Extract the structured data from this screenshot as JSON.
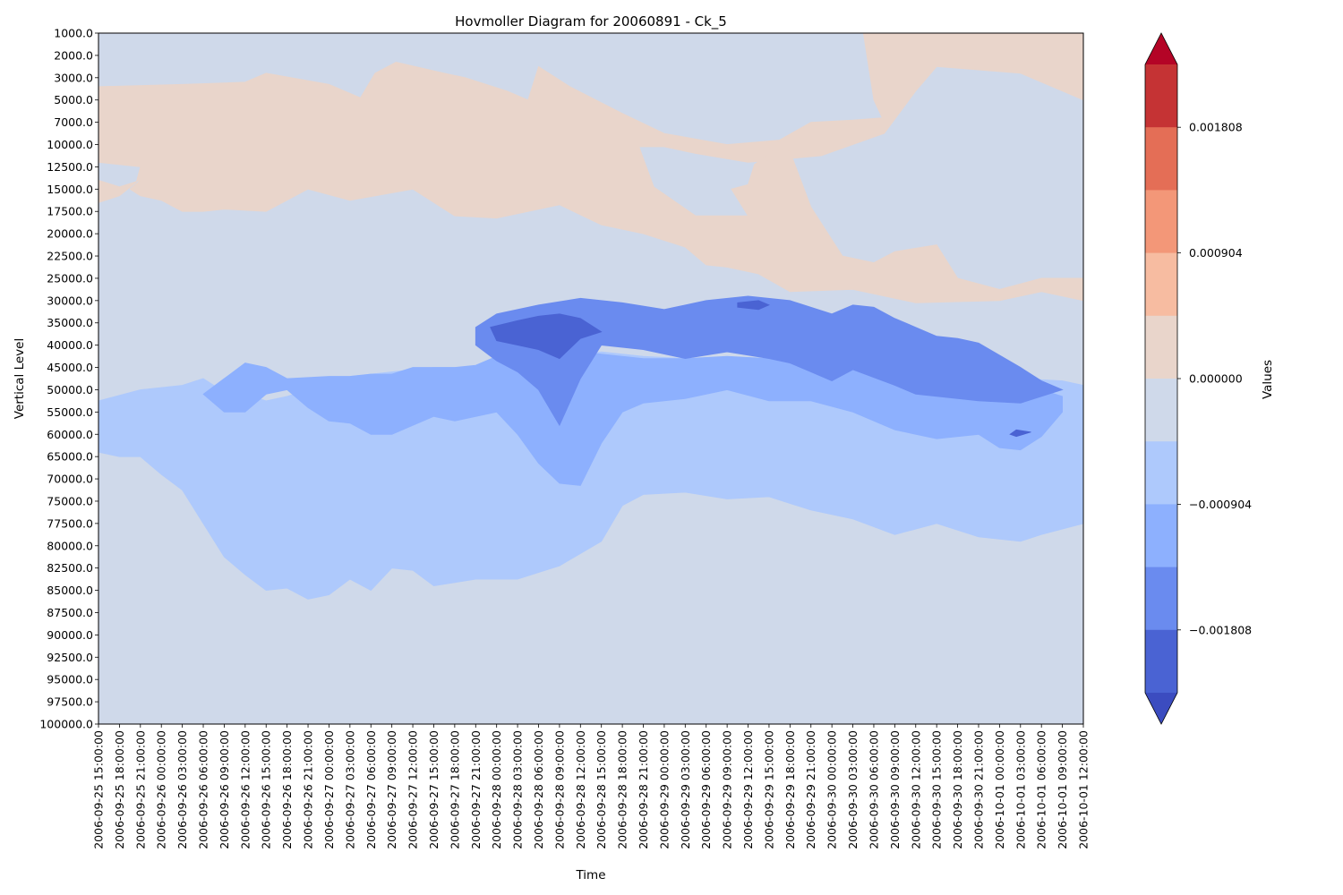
{
  "chart_data": {
    "type": "heatmap",
    "title": "Hovmoller Diagram for 20060891 - Ck_5",
    "xlabel": "Time",
    "ylabel": "Vertical Level",
    "x_categories": [
      "2006-09-25 15:00:00",
      "2006-09-25 18:00:00",
      "2006-09-25 21:00:00",
      "2006-09-26 00:00:00",
      "2006-09-26 03:00:00",
      "2006-09-26 06:00:00",
      "2006-09-26 09:00:00",
      "2006-09-26 12:00:00",
      "2006-09-26 15:00:00",
      "2006-09-26 18:00:00",
      "2006-09-26 21:00:00",
      "2006-09-27 00:00:00",
      "2006-09-27 03:00:00",
      "2006-09-27 06:00:00",
      "2006-09-27 09:00:00",
      "2006-09-27 12:00:00",
      "2006-09-27 15:00:00",
      "2006-09-27 18:00:00",
      "2006-09-27 21:00:00",
      "2006-09-28 00:00:00",
      "2006-09-28 03:00:00",
      "2006-09-28 06:00:00",
      "2006-09-28 09:00:00",
      "2006-09-28 12:00:00",
      "2006-09-28 15:00:00",
      "2006-09-28 18:00:00",
      "2006-09-28 21:00:00",
      "2006-09-29 00:00:00",
      "2006-09-29 03:00:00",
      "2006-09-29 06:00:00",
      "2006-09-29 09:00:00",
      "2006-09-29 12:00:00",
      "2006-09-29 15:00:00",
      "2006-09-29 18:00:00",
      "2006-09-29 21:00:00",
      "2006-09-30 00:00:00",
      "2006-09-30 03:00:00",
      "2006-09-30 06:00:00",
      "2006-09-30 09:00:00",
      "2006-09-30 12:00:00",
      "2006-09-30 15:00:00",
      "2006-09-30 18:00:00",
      "2006-09-30 21:00:00",
      "2006-10-01 00:00:00",
      "2006-10-01 03:00:00",
      "2006-10-01 06:00:00",
      "2006-10-01 09:00:00",
      "2006-10-01 12:00:00"
    ],
    "y_categories": [
      "1000.0",
      "2000.0",
      "3000.0",
      "5000.0",
      "7000.0",
      "10000.0",
      "12500.0",
      "15000.0",
      "17500.0",
      "20000.0",
      "22500.0",
      "25000.0",
      "30000.0",
      "35000.0",
      "40000.0",
      "45000.0",
      "50000.0",
      "55000.0",
      "60000.0",
      "65000.0",
      "70000.0",
      "75000.0",
      "77500.0",
      "80000.0",
      "82500.0",
      "85000.0",
      "87500.0",
      "90000.0",
      "92500.0",
      "95000.0",
      "97500.0",
      "100000.0"
    ],
    "colorbar": {
      "label": "Values",
      "ticks": [
        "0.001808",
        "0.000904",
        "0.000000",
        "−0.000904",
        "−0.001808"
      ],
      "levels_top_to_bottom": [
        "#b40426",
        "#c53334",
        "#e46e56",
        "#f39778",
        "#f7bca1",
        "#e9d5cb",
        "#cfd9ea",
        "#aec9fc",
        "#8db0fe",
        "#6a8bef",
        "#4a63d3",
        "#3b4cc0"
      ],
      "extend": "both"
    },
    "background_color": "#cfd9ea",
    "regions": [
      {
        "level": 0.00045,
        "color": "#e9d5cb",
        "shape": [
          [
            0,
            2.4
          ],
          [
            4,
            2.3
          ],
          [
            7,
            2.2
          ],
          [
            8,
            1.8
          ],
          [
            11,
            2.3
          ],
          [
            12.5,
            2.9
          ],
          [
            13.2,
            1.8
          ],
          [
            14.2,
            1.3
          ],
          [
            16.5,
            1.8
          ],
          [
            17.5,
            2.0
          ],
          [
            19.5,
            2.6
          ],
          [
            20.5,
            3.0
          ],
          [
            21,
            1.5
          ],
          [
            22.5,
            2.4
          ],
          [
            25,
            3.6
          ],
          [
            27,
            4.5
          ],
          [
            30,
            5.0
          ],
          [
            32.5,
            4.8
          ],
          [
            34,
            4.0
          ],
          [
            36,
            3.9
          ],
          [
            37.4,
            3.8
          ],
          [
            37,
            3.0
          ],
          [
            36.5,
            0
          ],
          [
            47,
            0
          ],
          [
            47,
            3.0
          ],
          [
            44,
            1.8
          ],
          [
            40,
            1.5
          ],
          [
            39,
            2.6
          ],
          [
            37.5,
            4.5
          ],
          [
            34.5,
            5.5
          ],
          [
            31,
            5.8
          ],
          [
            28.5,
            5.4
          ],
          [
            27,
            5.1
          ],
          [
            25.8,
            5.1
          ],
          [
            26.5,
            6.9
          ],
          [
            28.5,
            8.2
          ],
          [
            31,
            8.2
          ],
          [
            30.2,
            7.0
          ],
          [
            31,
            6.8
          ],
          [
            31.3,
            5.9
          ],
          [
            32.3,
            5.2
          ],
          [
            33,
            5.3
          ],
          [
            34,
            7.8
          ],
          [
            35.5,
            10.0
          ],
          [
            37,
            10.3
          ],
          [
            38,
            9.8
          ],
          [
            40,
            9.5
          ],
          [
            41,
            11.0
          ],
          [
            43,
            11.5
          ],
          [
            45,
            11.0
          ],
          [
            47,
            11.0
          ],
          [
            47,
            12.0
          ],
          [
            45,
            11.6
          ],
          [
            43,
            12.0
          ],
          [
            39,
            12.1
          ],
          [
            36,
            11.5
          ],
          [
            33,
            11.6
          ],
          [
            31.5,
            10.8
          ],
          [
            30,
            10.5
          ],
          [
            29,
            10.4
          ],
          [
            28,
            9.6
          ],
          [
            26,
            9.0
          ],
          [
            24,
            8.6
          ],
          [
            22,
            7.7
          ],
          [
            19,
            8.3
          ],
          [
            17,
            8.2
          ],
          [
            15,
            7.0
          ],
          [
            12,
            7.5
          ],
          [
            10,
            7.0
          ],
          [
            8,
            8.0
          ],
          [
            6,
            7.9
          ],
          [
            5,
            8.0
          ],
          [
            4,
            8.0
          ],
          [
            3,
            7.5
          ],
          [
            2,
            7.3
          ],
          [
            1.5,
            7.0
          ],
          [
            2,
            6.6
          ],
          [
            1,
            6.9
          ],
          [
            0,
            6.6
          ],
          [
            0,
            7.6
          ],
          [
            1,
            7.3
          ],
          [
            1.8,
            6.7
          ],
          [
            2,
            6.0
          ],
          [
            0,
            5.8
          ]
        ]
      },
      {
        "level": -0.00045,
        "color": "#aec9fc",
        "shape": [
          [
            0,
            16.5
          ],
          [
            2,
            16.0
          ],
          [
            4,
            15.8
          ],
          [
            5,
            15.5
          ],
          [
            6,
            16.1
          ],
          [
            7,
            16.2
          ],
          [
            8,
            16.5
          ],
          [
            9,
            16.3
          ],
          [
            10,
            16.0
          ],
          [
            12,
            15.4
          ],
          [
            14,
            15.2
          ],
          [
            16,
            15.0
          ],
          [
            18,
            15.0
          ],
          [
            20,
            15.0
          ],
          [
            22,
            14.5
          ],
          [
            23,
            14.4
          ],
          [
            24,
            14.3
          ],
          [
            25,
            14.4
          ],
          [
            26,
            14.5
          ],
          [
            28,
            14.6
          ],
          [
            30,
            14.8
          ],
          [
            32,
            15.0
          ],
          [
            34,
            15.2
          ],
          [
            36,
            15.0
          ],
          [
            38,
            15.0
          ],
          [
            40,
            15.4
          ],
          [
            42,
            15.5
          ],
          [
            44,
            15.5
          ],
          [
            46,
            15.6
          ],
          [
            47,
            15.8
          ],
          [
            47,
            22.0
          ],
          [
            45,
            22.5
          ],
          [
            44,
            22.8
          ],
          [
            42,
            22.6
          ],
          [
            40,
            22.0
          ],
          [
            38,
            22.5
          ],
          [
            36,
            21.8
          ],
          [
            34,
            21.4
          ],
          [
            32,
            20.8
          ],
          [
            30,
            20.9
          ],
          [
            28,
            20.6
          ],
          [
            26,
            20.7
          ],
          [
            25,
            21.2
          ],
          [
            24,
            22.8
          ],
          [
            22,
            23.9
          ],
          [
            20,
            24.5
          ],
          [
            18,
            24.5
          ],
          [
            16,
            24.8
          ],
          [
            15,
            24.1
          ],
          [
            14,
            24.0
          ],
          [
            13,
            25.0
          ],
          [
            12,
            24.5
          ],
          [
            11,
            25.2
          ],
          [
            10,
            25.4
          ],
          [
            9,
            24.9
          ],
          [
            8,
            25.0
          ],
          [
            7,
            24.3
          ],
          [
            6,
            23.5
          ],
          [
            5,
            22.0
          ],
          [
            4,
            20.5
          ],
          [
            3,
            19.8
          ],
          [
            2,
            19.0
          ],
          [
            1,
            19.0
          ],
          [
            0,
            18.8
          ]
        ]
      },
      {
        "level": -0.0009,
        "color": "#8db0fe",
        "shape": [
          [
            5,
            16.2
          ],
          [
            6,
            15.5
          ],
          [
            7,
            14.8
          ],
          [
            8,
            15.0
          ],
          [
            9,
            15.5
          ],
          [
            11,
            15.4
          ],
          [
            12,
            15.4
          ],
          [
            13,
            15.3
          ],
          [
            14,
            15.3
          ],
          [
            15,
            15.0
          ],
          [
            16,
            15.0
          ],
          [
            17,
            15.0
          ],
          [
            18,
            14.9
          ],
          [
            19,
            14.5
          ],
          [
            20,
            14.3
          ],
          [
            21,
            14.2
          ],
          [
            22,
            14.2
          ],
          [
            23,
            14.3
          ],
          [
            25,
            14.5
          ],
          [
            26,
            14.6
          ],
          [
            28,
            14.6
          ],
          [
            30,
            14.5
          ],
          [
            32,
            14.6
          ],
          [
            34,
            14.7
          ],
          [
            35,
            14.6
          ],
          [
            36,
            15.0
          ],
          [
            38,
            15.2
          ],
          [
            40,
            15.5
          ],
          [
            42,
            15.7
          ],
          [
            44,
            15.8
          ],
          [
            45,
            16.0
          ],
          [
            46,
            16.3
          ],
          [
            46,
            17.0
          ],
          [
            45,
            18.1
          ],
          [
            44,
            18.7
          ],
          [
            43,
            18.6
          ],
          [
            42,
            18.0
          ],
          [
            40,
            18.2
          ],
          [
            38,
            17.8
          ],
          [
            36,
            17.0
          ],
          [
            34,
            16.5
          ],
          [
            32,
            16.5
          ],
          [
            30,
            16.0
          ],
          [
            28,
            16.4
          ],
          [
            26,
            16.6
          ],
          [
            25,
            17.0
          ],
          [
            24,
            18.4
          ],
          [
            23,
            20.3
          ],
          [
            22,
            20.2
          ],
          [
            21,
            19.3
          ],
          [
            20,
            18.0
          ],
          [
            19,
            17.0
          ],
          [
            18,
            17.2
          ],
          [
            17,
            17.4
          ],
          [
            16,
            17.2
          ],
          [
            15,
            17.6
          ],
          [
            14,
            18.0
          ],
          [
            13,
            18.0
          ],
          [
            12,
            17.5
          ],
          [
            11,
            17.4
          ],
          [
            10,
            16.8
          ],
          [
            9,
            16.0
          ],
          [
            8,
            16.2
          ],
          [
            7,
            17.0
          ],
          [
            6,
            17.0
          ]
        ]
      },
      {
        "level": -0.00135,
        "color": "#6a8bef",
        "shape": [
          [
            18,
            13.2
          ],
          [
            19,
            12.6
          ],
          [
            21,
            12.2
          ],
          [
            23,
            11.9
          ],
          [
            25,
            12.1
          ],
          [
            27,
            12.4
          ],
          [
            29,
            12.0
          ],
          [
            31,
            11.8
          ],
          [
            33,
            12.0
          ],
          [
            35,
            12.6
          ],
          [
            36,
            12.2
          ],
          [
            37,
            12.3
          ],
          [
            38,
            12.8
          ],
          [
            39,
            13.2
          ],
          [
            40,
            13.6
          ],
          [
            41,
            13.7
          ],
          [
            42,
            13.9
          ],
          [
            44,
            15.0
          ],
          [
            45,
            15.6
          ],
          [
            46,
            16.0
          ],
          [
            44,
            16.6
          ],
          [
            42,
            16.5
          ],
          [
            40,
            16.3
          ],
          [
            39,
            16.2
          ],
          [
            38,
            15.8
          ],
          [
            36,
            15.1
          ],
          [
            35,
            15.6
          ],
          [
            34,
            15.2
          ],
          [
            33,
            14.8
          ],
          [
            32,
            14.6
          ],
          [
            30,
            14.3
          ],
          [
            28,
            14.6
          ],
          [
            26,
            14.2
          ],
          [
            24,
            14.0
          ],
          [
            23,
            15.5
          ],
          [
            22,
            17.6
          ],
          [
            21,
            16.0
          ],
          [
            20,
            15.2
          ],
          [
            19,
            14.7
          ],
          [
            18,
            14.0
          ]
        ]
      },
      {
        "level": -0.0018,
        "color": "#4a63d3",
        "shape": [
          [
            18.7,
            13.2
          ],
          [
            20,
            12.9
          ],
          [
            21,
            12.7
          ],
          [
            22,
            12.6
          ],
          [
            23,
            12.8
          ],
          [
            24,
            13.4
          ],
          [
            23,
            13.7
          ],
          [
            22,
            14.6
          ],
          [
            21,
            14.2
          ],
          [
            20,
            14.0
          ],
          [
            19,
            13.8
          ]
        ]
      },
      {
        "level": -0.0018,
        "color": "#4a63d3",
        "shape": [
          [
            30.5,
            12.1
          ],
          [
            31.5,
            12.0
          ],
          [
            32,
            12.2
          ],
          [
            31.5,
            12.4
          ],
          [
            30.5,
            12.3
          ]
        ]
      },
      {
        "level": -0.0018,
        "color": "#4a63d3",
        "shape": [
          [
            43.8,
            17.8
          ],
          [
            44.5,
            17.9
          ],
          [
            43.8,
            18.1
          ],
          [
            43.5,
            18.0
          ]
        ]
      }
    ]
  }
}
